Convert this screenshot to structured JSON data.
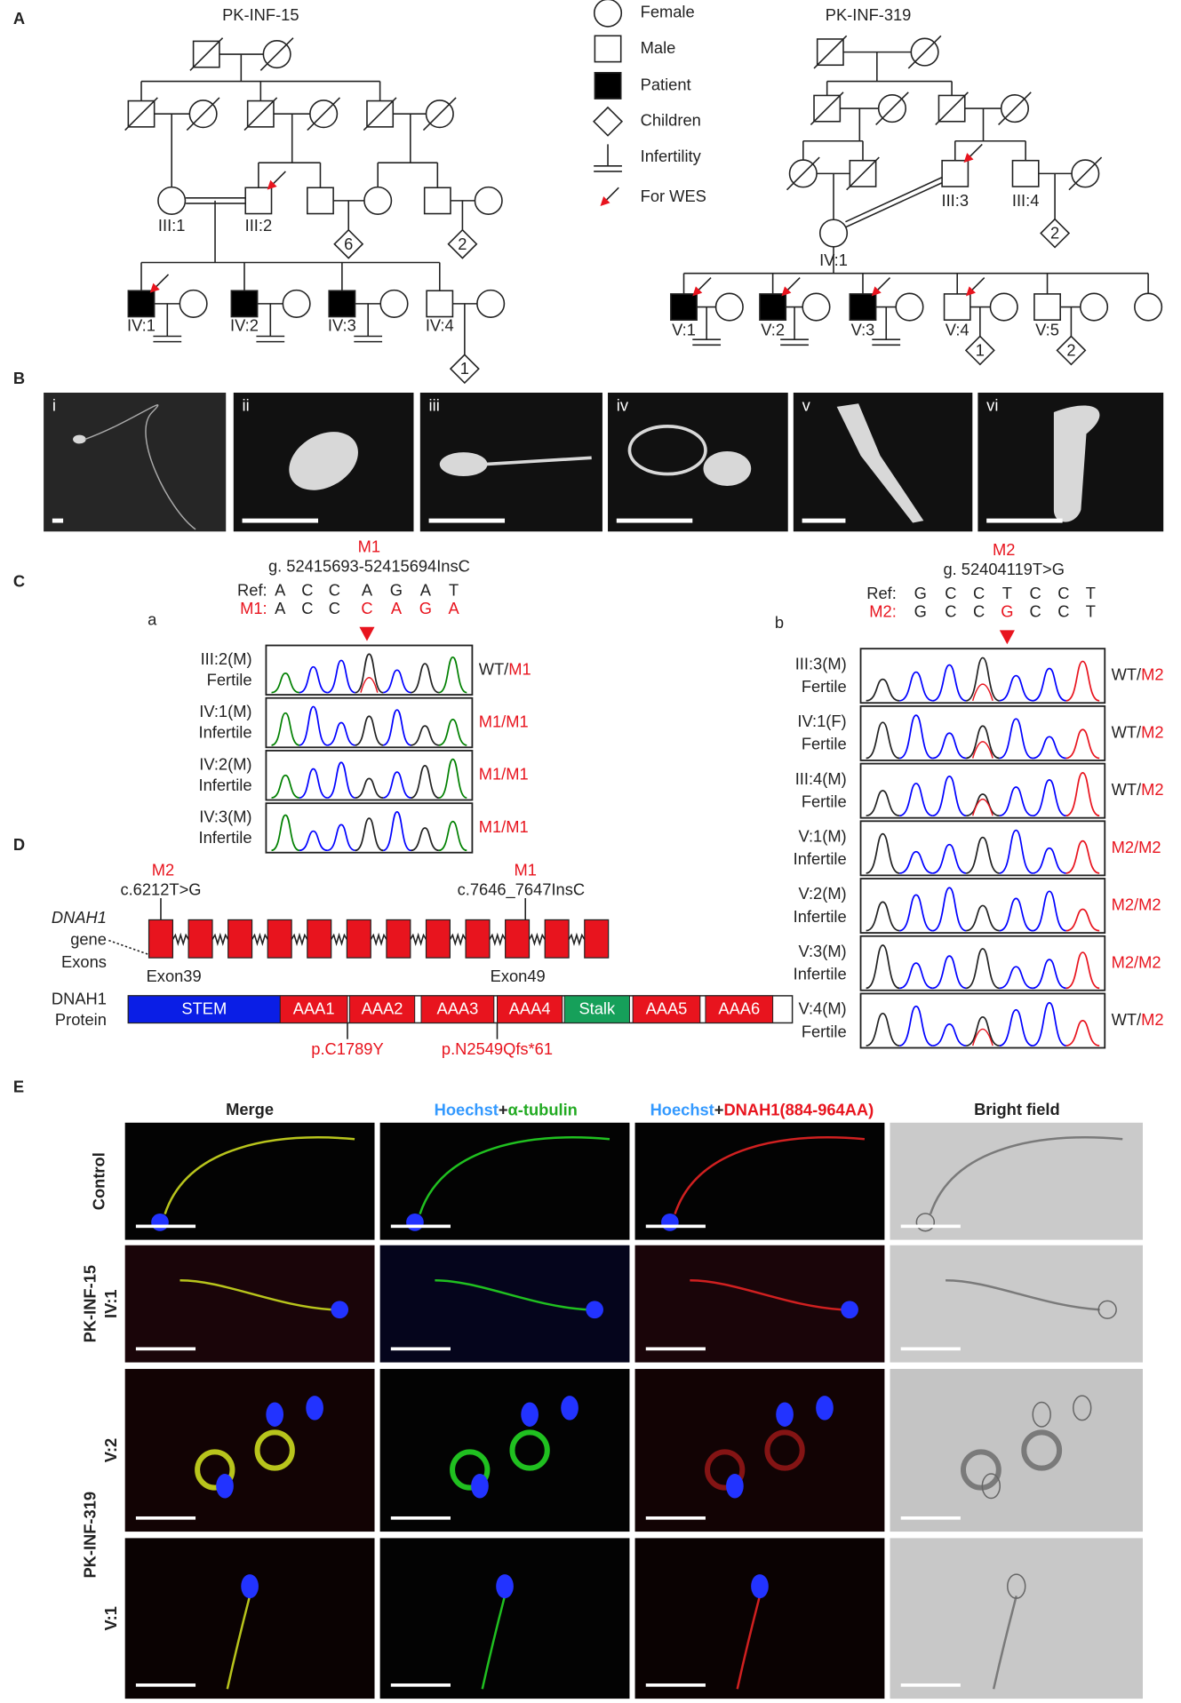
{
  "A": {
    "letter": "A",
    "ped1": {
      "title": "PK-INF-15",
      "ind": [
        "III:1",
        "III:2",
        "IV:1",
        "IV:2",
        "IV:3",
        "IV:4"
      ],
      "children": [
        "6",
        "2",
        "1"
      ]
    },
    "legend": [
      "Female",
      "Male",
      "Patient",
      "Children",
      "Infertility",
      "For WES"
    ],
    "ped2": {
      "title": "PK-INF-319",
      "ind": [
        "III:3",
        "III:4",
        "IV:1",
        "V:1",
        "V:2",
        "V:3",
        "V:4",
        "V:5"
      ],
      "children": [
        "2",
        "1",
        "2"
      ]
    }
  },
  "B": {
    "letter": "B",
    "images": [
      "i",
      "ii",
      "iii",
      "iv",
      "v",
      "vi"
    ]
  },
  "C": {
    "letter": "C",
    "a": {
      "label": "a",
      "mutation": "M1",
      "position": "g. 52415693-52415694InsC",
      "ref_label": "Ref:",
      "ref": [
        "A",
        "C",
        "C",
        "A",
        "G",
        "A",
        "T"
      ],
      "mut_label": "M1:",
      "mut": [
        "A",
        "C",
        "C",
        "C",
        "A",
        "G",
        "A"
      ],
      "samples": [
        {
          "id": "III:2(M)",
          "status": "Fertile",
          "genotype": [
            "WT/",
            "M1"
          ]
        },
        {
          "id": "IV:1(M)",
          "status": "Infertile",
          "genotype": [
            "M1/M1"
          ]
        },
        {
          "id": "IV:2(M)",
          "status": "Infertile",
          "genotype": [
            "M1/M1"
          ]
        },
        {
          "id": "IV:3(M)",
          "status": "Infertile",
          "genotype": [
            "M1/M1"
          ]
        }
      ]
    },
    "b": {
      "label": "b",
      "mutation": "M2",
      "position": "g. 52404119T>G",
      "ref_label": "Ref:",
      "ref": [
        "G",
        "C",
        "C",
        "T",
        "C",
        "C",
        "T"
      ],
      "mut_label": "M2:",
      "mut": [
        "G",
        "C",
        "C",
        "G",
        "C",
        "C",
        "T"
      ],
      "samples": [
        {
          "id": "III:3(M)",
          "status": "Fertile",
          "genotype": [
            "WT/",
            "M2"
          ]
        },
        {
          "id": "IV:1(F)",
          "status": "Fertile",
          "genotype": [
            "WT/",
            "M2"
          ]
        },
        {
          "id": "III:4(M)",
          "status": "Fertile",
          "genotype": [
            "WT/",
            "M2"
          ]
        },
        {
          "id": "V:1(M)",
          "status": "Infertile",
          "genotype": [
            "M2/M2"
          ]
        },
        {
          "id": "V:2(M)",
          "status": "Infertile",
          "genotype": [
            "M2/M2"
          ]
        },
        {
          "id": "V:3(M)",
          "status": "Infertile",
          "genotype": [
            "M2/M2"
          ]
        },
        {
          "id": "V:4(M)",
          "status": "Fertile",
          "genotype": [
            "WT/",
            "M2"
          ]
        }
      ]
    }
  },
  "D": {
    "letter": "D",
    "m2": "M2",
    "m2_cdna": "c.6212T>G",
    "m1": "M1",
    "m1_cdna": "c.7646_7647InsC",
    "gene_label": [
      "DNAH1",
      "gene",
      "Exons"
    ],
    "exon_left": "Exon39",
    "exon_right": "Exon49",
    "protein_label": [
      "DNAH1",
      "Protein"
    ],
    "domains": [
      "STEM",
      "AAA1",
      "AAA2",
      "AAA3",
      "AAA4",
      "Stalk",
      "AAA5",
      "AAA6"
    ],
    "p1": "p.C1789Y",
    "p2": "p.N2549Qfs*61"
  },
  "E": {
    "letter": "E",
    "headers": {
      "merge": "Merge",
      "tubulin": [
        "Hoechst",
        "+",
        "α-tubulin"
      ],
      "dnah1": [
        "Hoechst",
        "+",
        "DNAH1(884-964AA)"
      ],
      "bright": "Bright field"
    },
    "rows": {
      "control": "Control",
      "pk15": "PK-INF-15",
      "pk15_ind": "IV:1",
      "pk319": "PK-INF-319",
      "v2": "V:2",
      "v1": "V:1"
    }
  }
}
